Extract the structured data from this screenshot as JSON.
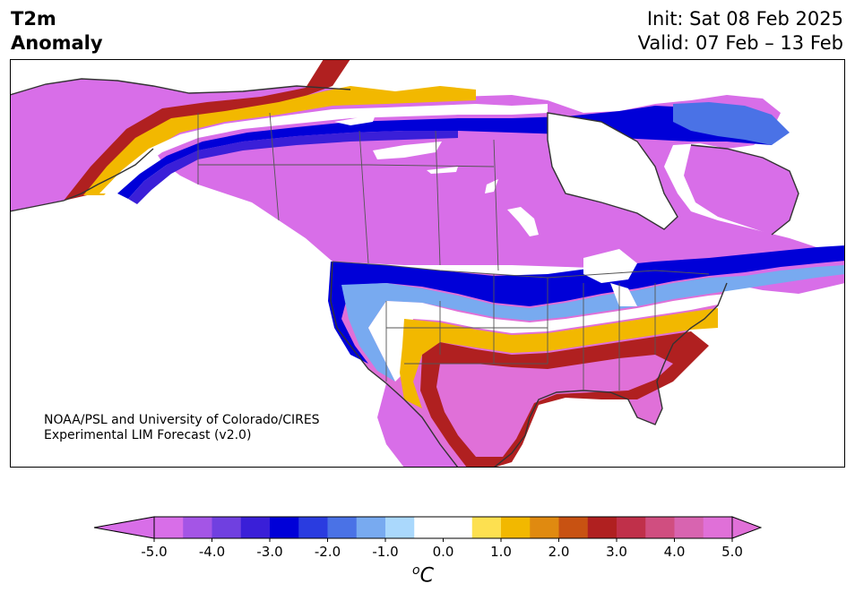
{
  "header": {
    "title_line1": "T2m",
    "title_line2": "Anomaly",
    "init": "Init: Sat 08 Feb 2025",
    "valid": "Valid: 07 Feb – 13 Feb"
  },
  "credit": {
    "line1": "NOAA/PSL and University of Colorado/CIRES",
    "line2": "Experimental LIM Forecast (v2.0)"
  },
  "colorbar": {
    "units_base": "C",
    "units_sup": "o",
    "min": -5.0,
    "max": 5.0,
    "ticks": [
      "-5.0",
      "-4.0",
      "-3.0",
      "-2.0",
      "-1.0",
      "0.0",
      "1.0",
      "2.0",
      "3.0",
      "4.0",
      "5.0"
    ],
    "colors": [
      "#d86ee8",
      "#a455e6",
      "#7040e0",
      "#3a1fd8",
      "#0000d8",
      "#2a3ce0",
      "#4a72e6",
      "#78aaf0",
      "#aad8fc",
      "#ffffff",
      "#ffffff",
      "#fde050",
      "#f2b800",
      "#e08a10",
      "#c85212",
      "#b02020",
      "#c0304a",
      "#d04e80",
      "#d864b0",
      "#e070d8"
    ],
    "under_color": "#d86ee8",
    "over_color": "#e070d8"
  },
  "map": {
    "region": "North America",
    "variable": "2-m temperature anomaly",
    "colors": {
      "land_outline": "#333333",
      "border": "#555555",
      "cold_extreme": "#d86ee8",
      "warm_extreme": "#e070d8",
      "ocean": "#ffffff"
    }
  }
}
